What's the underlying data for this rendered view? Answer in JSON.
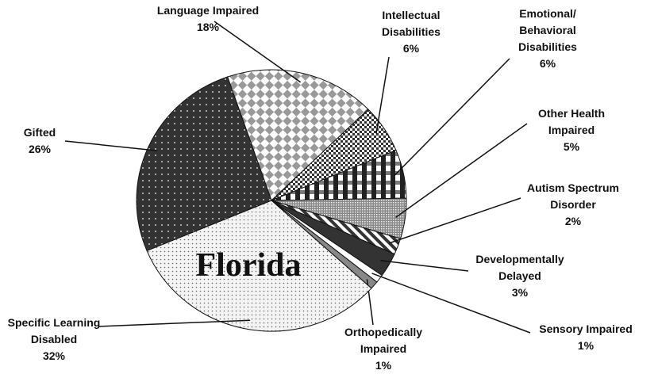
{
  "chart_data": {
    "type": "pie",
    "annotation": "Florida",
    "categories": [
      "Language Impaired",
      "Intellectual\nDisabilities",
      "Emotional/\nBehavioral\nDisabilities",
      "Other Health\nImpaired",
      "Autism Spectrum\nDisorder",
      "Developmentally\nDelayed",
      "Sensory Impaired",
      "Orthopedically\nImpaired",
      "Specific Learning\nDisabled",
      "Gifted"
    ],
    "values": [
      18,
      6,
      6,
      5,
      2,
      3,
      1,
      1,
      32,
      26
    ],
    "value_labels": [
      "18%",
      "6%",
      "6%",
      "5%",
      "2%",
      "3%",
      "1%",
      "1%",
      "32%",
      "26%"
    ]
  }
}
